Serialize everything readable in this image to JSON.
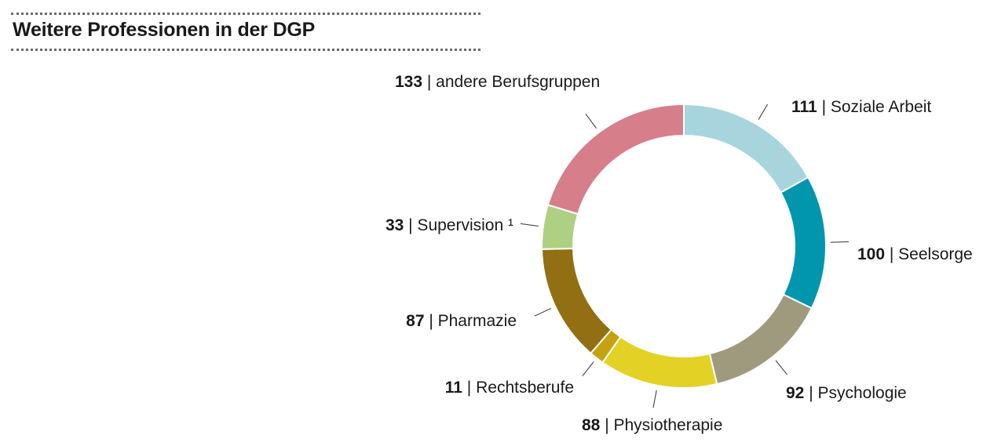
{
  "title": "Weitere Professionen in der DGP",
  "chart_data": {
    "type": "pie",
    "variant": "donut",
    "title": "Weitere Professionen in der DGP",
    "label_separator": " | ",
    "slices": [
      {
        "label": "Soziale Arbeit",
        "value": 111,
        "color": "#a8d5dd"
      },
      {
        "label": "Seelsorge",
        "value": 100,
        "color": "#0096ad"
      },
      {
        "label": "Psychologie",
        "value": 92,
        "color": "#9f9a7e"
      },
      {
        "label": "Physiotherapie",
        "value": 88,
        "color": "#e4d125"
      },
      {
        "label": "Rechtsberufe",
        "value": 11,
        "color": "#c6a212"
      },
      {
        "label": "Pharmazie",
        "value": 87,
        "color": "#926f12"
      },
      {
        "label": "Supervision ¹",
        "value": 33,
        "color": "#aed083"
      },
      {
        "label": "andere Berufsgruppen",
        "value": 133,
        "color": "#d67e89"
      }
    ]
  }
}
